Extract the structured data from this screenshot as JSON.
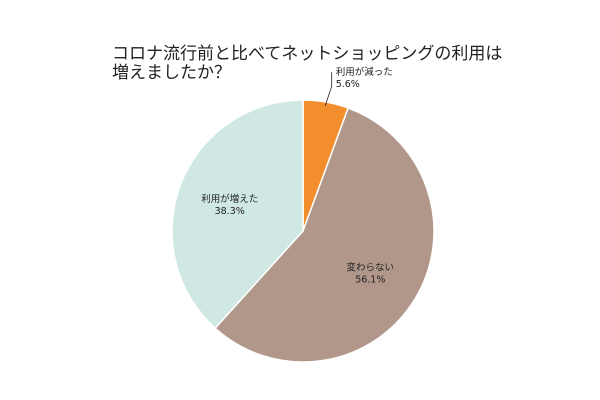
{
  "chart_data": {
    "type": "pie",
    "title_lines": [
      "コロナ流行前と比べてネットショッピングの利用は",
      "増えましたか？"
    ],
    "slices": [
      {
        "label": "利用が減った",
        "value": 5.6,
        "value_label": "5.6%",
        "color": "#f28e2b"
      },
      {
        "label": "変わらない",
        "value": 56.1,
        "value_label": "56.1%",
        "color": "#b0978a"
      },
      {
        "label": "利用が増えた",
        "value": 38.3,
        "value_label": "38.3%",
        "color": "#cfe8e4"
      }
    ],
    "start_angle": "12 o'clock",
    "direction": "clockwise",
    "legend": "none"
  }
}
